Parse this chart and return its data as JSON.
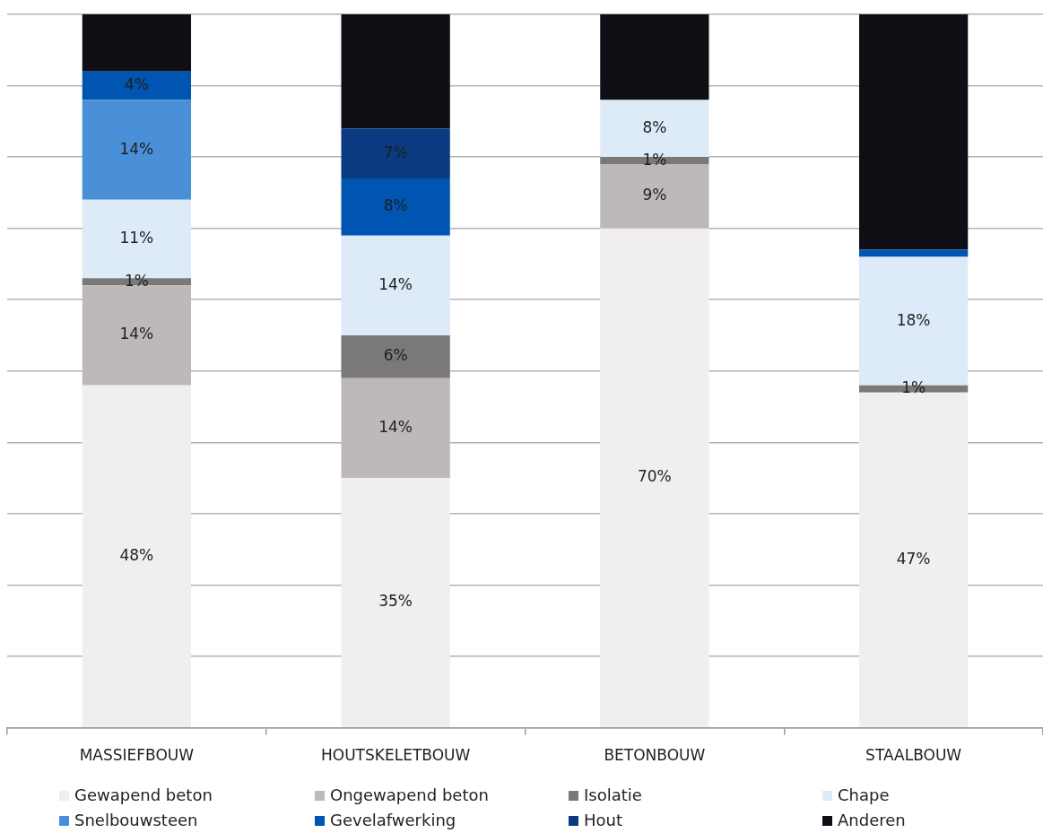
{
  "chart_data": {
    "type": "bar",
    "stacked": true,
    "categories": [
      "MASSIEFBOUW",
      "HOUTSKELETBOUW",
      "BETONBOUW",
      "STAALBOUW"
    ],
    "series": [
      {
        "name": "Gewapend beton",
        "color": "#f0efee",
        "values": [
          48,
          35,
          70,
          47
        ],
        "value_labels": [
          "48%",
          "35%",
          "70%",
          "47%"
        ]
      },
      {
        "name": "Ongewapend beton",
        "color": "#bcb9b8",
        "values": [
          14,
          14,
          9,
          null
        ],
        "value_labels": [
          "14%",
          "14%",
          "9%",
          null
        ]
      },
      {
        "name": "Isolatie",
        "color": "#7b7878",
        "values": [
          1,
          6,
          1,
          1
        ],
        "value_labels": [
          "1%",
          "6%",
          "1%",
          "1%"
        ]
      },
      {
        "name": "Chape",
        "color": "#ddeaf7",
        "values": [
          11,
          14,
          8,
          18
        ],
        "value_labels": [
          "11%",
          "14%",
          "8%",
          "18%"
        ]
      },
      {
        "name": "Snelbouwsteen",
        "color": "#4a90d9",
        "values": [
          14,
          null,
          null,
          null
        ],
        "value_labels": [
          "14%",
          null,
          null,
          null
        ]
      },
      {
        "name": "Gevelafwerking",
        "color": "#0055b3",
        "values": [
          4,
          8,
          null,
          1
        ],
        "value_labels": [
          "4%",
          "8%",
          null,
          null
        ]
      },
      {
        "name": "Hout",
        "color": "#0b3a80",
        "values": [
          null,
          7,
          null,
          null
        ],
        "value_labels": [
          null,
          "7%",
          null,
          null
        ]
      },
      {
        "name": "Anderen",
        "color": "#0d0f14",
        "values": [
          8,
          16,
          12,
          33
        ]
      }
    ],
    "ylim": [
      0,
      100
    ],
    "yticks": [
      {
        "value": 0,
        "label": null
      },
      {
        "value": 10,
        "label": null
      },
      {
        "value": 20,
        "label": null
      },
      {
        "value": 30,
        "label": null
      },
      {
        "value": 40,
        "label": null
      },
      {
        "value": 50,
        "label": null
      },
      {
        "value": 60,
        "label": null
      },
      {
        "value": 70,
        "label": null
      },
      {
        "value": 80,
        "label": null
      },
      {
        "value": 90,
        "label": null
      },
      {
        "value": 100,
        "label": null
      }
    ],
    "grid": "y",
    "legend": "bottom",
    "tick_labels": "x"
  }
}
